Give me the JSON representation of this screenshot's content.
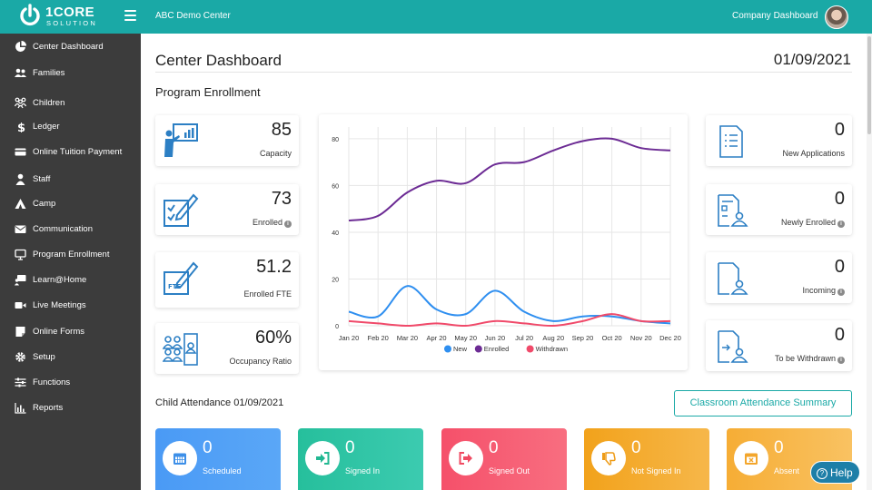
{
  "header": {
    "brand": "1CORE",
    "brand_sub": "SOLUTION",
    "center_name": "ABC Demo Center",
    "company_link": "Company Dashboard"
  },
  "sidebar": {
    "items": [
      {
        "label": "Center Dashboard",
        "icon": "pie-chart-icon"
      },
      {
        "label": "Families",
        "icon": "users-icon"
      },
      {
        "label": "Children",
        "icon": "children-icon"
      },
      {
        "label": "Ledger",
        "icon": "dollar-icon"
      },
      {
        "label": "Online Tuition Payment",
        "icon": "credit-card-icon"
      },
      {
        "label": "Staff",
        "icon": "staff-icon"
      },
      {
        "label": "Camp",
        "icon": "camp-icon"
      },
      {
        "label": "Communication",
        "icon": "envelope-icon"
      },
      {
        "label": "Program Enrollment",
        "icon": "monitor-icon"
      },
      {
        "label": "Learn@Home",
        "icon": "learn-icon"
      },
      {
        "label": "Live Meetings",
        "icon": "video-icon"
      },
      {
        "label": "Online Forms",
        "icon": "form-icon"
      },
      {
        "label": "Setup",
        "icon": "gear-icon"
      },
      {
        "label": "Functions",
        "icon": "sliders-icon"
      },
      {
        "label": "Reports",
        "icon": "bar-chart-icon"
      }
    ]
  },
  "main": {
    "title": "Center Dashboard",
    "date": "01/09/2021",
    "section_title": "Program Enrollment",
    "left_stats": [
      {
        "value": "85",
        "label": "Capacity",
        "info": false,
        "icon": "presentation-icon"
      },
      {
        "value": "73",
        "label": "Enrolled",
        "info": true,
        "icon": "checklist-edit-icon"
      },
      {
        "value": "51.2",
        "label": "Enrolled FTE",
        "info": false,
        "icon": "fte-edit-icon",
        "icon_text": "FTE"
      },
      {
        "value": "60%",
        "label": "Occupancy Ratio",
        "info": false,
        "icon": "people-group-icon"
      }
    ],
    "right_stats": [
      {
        "value": "0",
        "label": "New Applications",
        "info": false,
        "icon": "document-list-icon"
      },
      {
        "value": "0",
        "label": "Newly Enrolled",
        "info": true,
        "icon": "document-person-icon"
      },
      {
        "value": "0",
        "label": "Incoming",
        "info": true,
        "icon": "document-user-icon"
      },
      {
        "value": "0",
        "label": "To be Withdrawn",
        "info": true,
        "icon": "document-exit-icon"
      }
    ],
    "attendance_title": "Child Attendance 01/09/2021",
    "summary_button": "Classroom Attendance Summary",
    "attendance_cards": [
      {
        "value": "0",
        "label": "Scheduled",
        "color": "#4a9af5",
        "icon": "calendar-icon"
      },
      {
        "value": "0",
        "label": "Signed In",
        "color": "#2ec4a5",
        "icon": "sign-in-icon"
      },
      {
        "value": "0",
        "label": "Signed Out",
        "color": "#f5586f",
        "icon": "sign-out-icon"
      },
      {
        "value": "0",
        "label": "Not Signed In",
        "color": "#f5a623",
        "icon": "thumbs-down-icon"
      },
      {
        "value": "0",
        "label": "Absent",
        "color": "#f7b13d",
        "icon": "calendar-x-icon"
      }
    ],
    "help_label": "Help"
  },
  "colors": {
    "accent": "#1aa9a6",
    "sidebar": "#3c3c3c",
    "icon_blue": "#2c7fc4"
  },
  "chart_data": {
    "type": "line",
    "categories": [
      "Jan 20",
      "Feb 20",
      "Mar 20",
      "Apr 20",
      "May 20",
      "Jun 20",
      "Jul 20",
      "Aug 20",
      "Sep 20",
      "Oct 20",
      "Nov 20",
      "Dec 20"
    ],
    "ylim": [
      0,
      85
    ],
    "yticks": [
      0,
      20,
      40,
      60,
      80
    ],
    "grid": true,
    "legend": "bottom",
    "series": [
      {
        "name": "New",
        "color": "#2f8ff0",
        "values": [
          6,
          4,
          17,
          7,
          5,
          15,
          6,
          2,
          4,
          4,
          2,
          1
        ]
      },
      {
        "name": "Enrolled",
        "color": "#6c2b94",
        "values": [
          45,
          47,
          57,
          62,
          61,
          69,
          70,
          75,
          79,
          80,
          76,
          75
        ]
      },
      {
        "name": "Withdrawn",
        "color": "#f04a6a",
        "values": [
          2,
          1,
          0,
          1,
          0,
          2,
          1,
          0,
          2,
          5,
          2,
          2
        ]
      }
    ]
  }
}
